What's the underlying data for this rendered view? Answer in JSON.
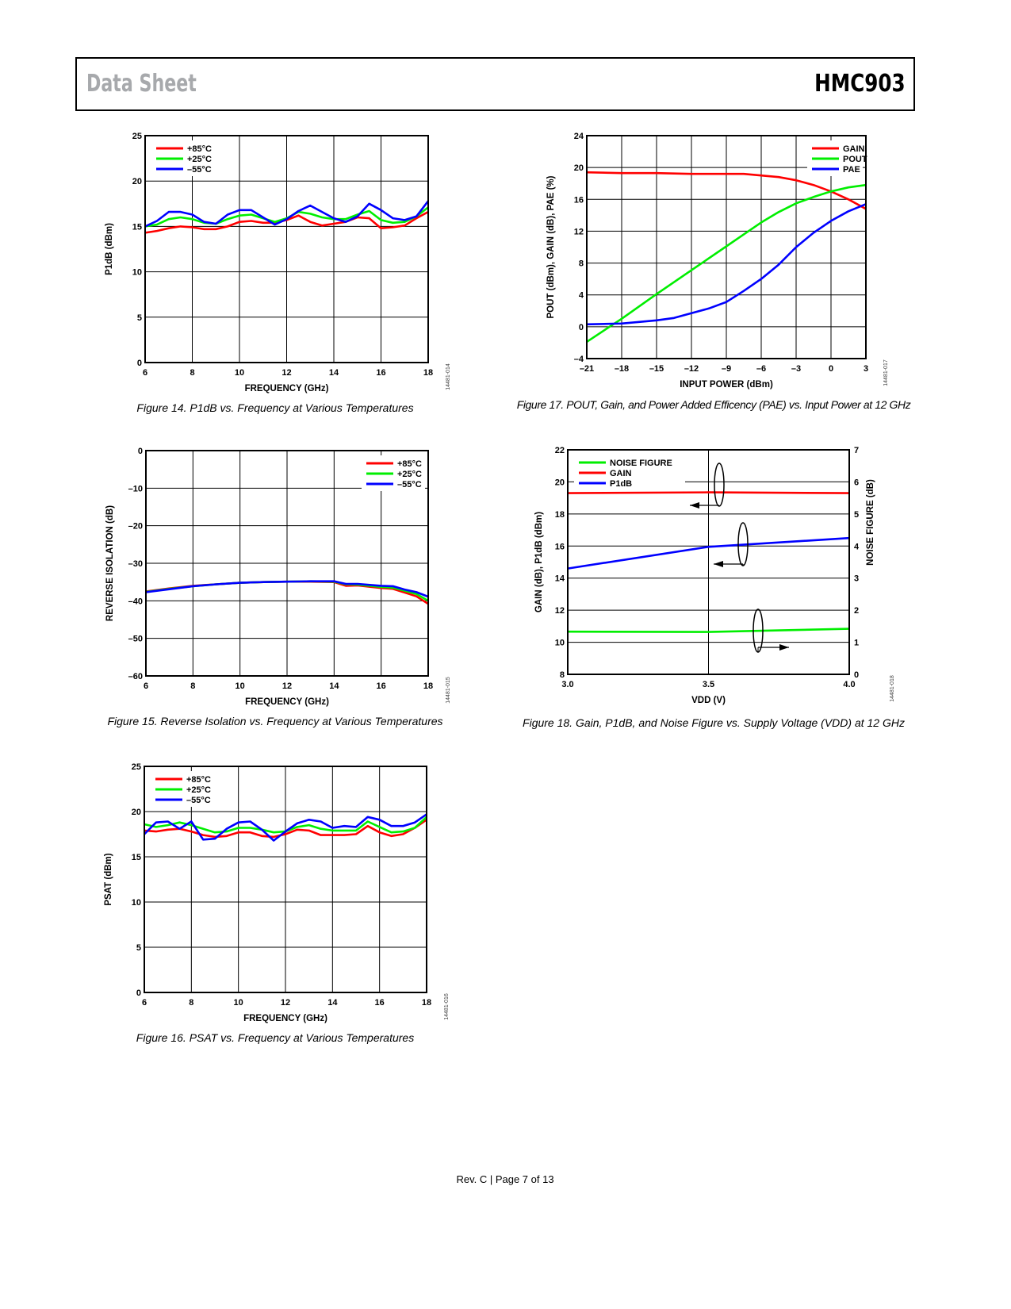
{
  "header": {
    "left": "Data Sheet",
    "right": "HMC903"
  },
  "footer": "Rev. C | Page 7 of 13",
  "captions": [
    "Figure 14. P1dB vs. Frequency at Various Temperatures",
    "Figure 15. Reverse Isolation vs. Frequency at Various Temperatures",
    "Figure 16. PSAT vs. Frequency at Various Temperatures",
    "Figure 17. POUT, Gain, and Power Added Efficency (PAE) vs. Input Power at 12 GHz",
    "Figure 18. Gain, P1dB, and Noise Figure vs. Supply Voltage (VDD) at 12 GHz"
  ],
  "chart_data": [
    {
      "type": "line",
      "figure_code": "14481-014",
      "xlabel": "FREQUENCY (GHz)",
      "ylabel": "P1dB (dBm)",
      "xlim": [
        6,
        18
      ],
      "ylim": [
        0,
        25
      ],
      "xticks": [
        6,
        8,
        10,
        12,
        14,
        16,
        18
      ],
      "xtick_labels": [
        "6",
        "8",
        "10",
        "12",
        "14",
        "16",
        "18"
      ],
      "yticks": [
        0,
        5,
        10,
        15,
        20,
        25
      ],
      "ytick_labels": [
        "0",
        "5",
        "10",
        "15",
        "20",
        "25"
      ],
      "grid": true,
      "legend": "top-left",
      "series": [
        {
          "name": "+85°C",
          "color": "#ff0000",
          "x": [
            6,
            6.5,
            7,
            7.5,
            8,
            8.5,
            9,
            9.5,
            10,
            10.5,
            11,
            11.5,
            12,
            12.5,
            13,
            13.5,
            14,
            14.5,
            15,
            15.5,
            16,
            16.5,
            17,
            17.5,
            18
          ],
          "y": [
            14.3,
            14.5,
            14.8,
            15.0,
            14.9,
            14.7,
            14.7,
            15.0,
            15.5,
            15.6,
            15.4,
            15.4,
            15.7,
            16.2,
            15.5,
            15.1,
            15.3,
            15.5,
            16.0,
            15.9,
            14.8,
            14.9,
            15.1,
            15.9,
            16.6
          ]
        },
        {
          "name": "+25°C",
          "color": "#00ee00",
          "x": [
            6,
            6.5,
            7,
            7.5,
            8,
            8.5,
            9,
            9.5,
            10,
            10.5,
            11,
            11.5,
            12,
            12.5,
            13,
            13.5,
            14,
            14.5,
            15,
            15.5,
            16,
            16.5,
            17,
            17.5,
            18
          ],
          "y": [
            15.0,
            15.2,
            15.8,
            16.0,
            15.8,
            15.4,
            15.3,
            15.8,
            16.2,
            16.3,
            15.9,
            15.5,
            15.9,
            16.6,
            16.4,
            16.0,
            15.8,
            15.8,
            16.3,
            16.7,
            15.7,
            15.4,
            15.5,
            16.1,
            17.1
          ]
        },
        {
          "name": "–55°C",
          "color": "#0000ff",
          "x": [
            6,
            6.5,
            7,
            7.5,
            8,
            8.5,
            9,
            9.5,
            10,
            10.5,
            11,
            11.5,
            12,
            12.5,
            13,
            13.5,
            14,
            14.5,
            15,
            15.5,
            16,
            16.5,
            17,
            17.5,
            18
          ],
          "y": [
            15.0,
            15.6,
            16.6,
            16.6,
            16.3,
            15.5,
            15.3,
            16.3,
            16.8,
            16.8,
            16.0,
            15.2,
            15.8,
            16.7,
            17.3,
            16.6,
            15.9,
            15.5,
            16.1,
            17.5,
            16.8,
            15.9,
            15.7,
            16.1,
            17.8
          ]
        }
      ]
    },
    {
      "type": "line",
      "figure_code": "14481-015",
      "xlabel": "FREQUENCY (GHz)",
      "ylabel": "REVERSE ISOLATION (dB)",
      "xlim": [
        6,
        18
      ],
      "ylim": [
        -60,
        0
      ],
      "xticks": [
        6,
        8,
        10,
        12,
        14,
        16,
        18
      ],
      "xtick_labels": [
        "6",
        "8",
        "10",
        "12",
        "14",
        "16",
        "18"
      ],
      "yticks": [
        -60,
        -50,
        -40,
        -30,
        -20,
        -10,
        0
      ],
      "ytick_labels": [
        "–60",
        "–50",
        "–40",
        "–30",
        "–20",
        "–10",
        "0"
      ],
      "grid": true,
      "legend": "top-right",
      "series": [
        {
          "name": "+85°C",
          "color": "#ff0000",
          "x": [
            6,
            7,
            8,
            9,
            10,
            11,
            12,
            13,
            14,
            14.5,
            15,
            16,
            16.5,
            17,
            17.5,
            18
          ],
          "y": [
            -37.5,
            -36.7,
            -36.0,
            -35.6,
            -35.2,
            -35.0,
            -34.9,
            -34.9,
            -35.0,
            -36.0,
            -35.9,
            -36.6,
            -36.8,
            -37.8,
            -38.8,
            -40.8
          ]
        },
        {
          "name": "+25°C",
          "color": "#00ee00",
          "x": [
            6,
            7,
            8,
            9,
            10,
            11,
            12,
            13,
            14,
            14.5,
            15,
            16,
            16.5,
            17,
            17.5,
            18
          ],
          "y": [
            -37.6,
            -36.8,
            -36.1,
            -35.6,
            -35.2,
            -35.0,
            -34.9,
            -34.8,
            -34.9,
            -35.6,
            -35.7,
            -36.3,
            -36.5,
            -37.3,
            -38.2,
            -40.0
          ]
        },
        {
          "name": "–55°C",
          "color": "#0000ff",
          "x": [
            6,
            7,
            8,
            9,
            10,
            11,
            12,
            13,
            14,
            14.5,
            15,
            16,
            16.5,
            17,
            17.5,
            18
          ],
          "y": [
            -37.7,
            -36.9,
            -36.1,
            -35.6,
            -35.2,
            -35.0,
            -34.9,
            -34.8,
            -34.8,
            -35.5,
            -35.5,
            -36.0,
            -36.1,
            -37.0,
            -37.7,
            -38.9
          ]
        }
      ]
    },
    {
      "type": "line",
      "figure_code": "14481-016",
      "xlabel": "FREQUENCY (GHz)",
      "ylabel": "PSAT (dBm)",
      "xlim": [
        6,
        18
      ],
      "ylim": [
        0,
        25
      ],
      "xticks": [
        6,
        8,
        10,
        12,
        14,
        16,
        18
      ],
      "xtick_labels": [
        "6",
        "8",
        "10",
        "12",
        "14",
        "16",
        "18"
      ],
      "yticks": [
        0,
        5,
        10,
        15,
        20,
        25
      ],
      "ytick_labels": [
        "0",
        "5",
        "10",
        "15",
        "20",
        "25"
      ],
      "grid": true,
      "legend": "top-left",
      "series": [
        {
          "name": "+85°C",
          "color": "#ff0000",
          "x": [
            6,
            6.5,
            7,
            7.5,
            8,
            8.5,
            9,
            9.5,
            10,
            10.5,
            11,
            11.5,
            12,
            12.5,
            13,
            13.5,
            14,
            14.5,
            15,
            15.5,
            16,
            16.5,
            17,
            17.5,
            18
          ],
          "y": [
            17.9,
            17.8,
            18.0,
            18.1,
            17.8,
            17.4,
            17.2,
            17.3,
            17.7,
            17.7,
            17.3,
            17.2,
            17.5,
            18.0,
            17.9,
            17.4,
            17.4,
            17.4,
            17.5,
            18.4,
            17.7,
            17.3,
            17.5,
            18.2,
            19.1
          ]
        },
        {
          "name": "+25°C",
          "color": "#00ee00",
          "x": [
            6,
            6.5,
            7,
            7.5,
            8,
            8.5,
            9,
            9.5,
            10,
            10.5,
            11,
            11.5,
            12,
            12.5,
            13,
            13.5,
            14,
            14.5,
            15,
            15.5,
            16,
            16.5,
            17,
            17.5,
            18
          ],
          "y": [
            18.6,
            18.3,
            18.5,
            18.8,
            18.5,
            18.1,
            17.7,
            17.8,
            18.2,
            18.2,
            18.0,
            17.7,
            17.8,
            18.3,
            18.5,
            18.1,
            17.9,
            17.9,
            17.9,
            18.9,
            18.3,
            17.7,
            17.8,
            18.2,
            19.4
          ]
        },
        {
          "name": "–55°C",
          "color": "#0000ff",
          "x": [
            6,
            6.5,
            7,
            7.5,
            8,
            8.5,
            9,
            9.5,
            10,
            10.5,
            11,
            11.5,
            12,
            12.5,
            13,
            13.5,
            14,
            14.5,
            15,
            15.5,
            16,
            16.5,
            17,
            17.5,
            18
          ],
          "y": [
            17.5,
            18.8,
            18.9,
            18.1,
            18.9,
            16.9,
            17.0,
            18.1,
            18.8,
            18.9,
            18.0,
            16.8,
            17.8,
            18.7,
            19.1,
            18.9,
            18.2,
            18.4,
            18.3,
            19.4,
            19.1,
            18.4,
            18.4,
            18.8,
            19.7
          ]
        }
      ]
    },
    {
      "type": "line",
      "figure_code": "14481-017",
      "xlabel": "INPUT POWER (dBm)",
      "ylabel": "POUT (dBm), GAIN (dB), PAE (%)",
      "xlim": [
        -21,
        3
      ],
      "ylim": [
        -4,
        24
      ],
      "xticks": [
        -21,
        -18,
        -15,
        -12,
        -9,
        -6,
        -3,
        0,
        3
      ],
      "xtick_labels": [
        "–21",
        "–18",
        "–15",
        "–12",
        "–9",
        "–6",
        "–3",
        "0",
        "3"
      ],
      "yticks": [
        -4,
        0,
        4,
        8,
        12,
        16,
        20,
        24
      ],
      "ytick_labels": [
        "–4",
        "0",
        "4",
        "8",
        "12",
        "16",
        "20",
        "24"
      ],
      "grid": true,
      "legend": "top-right",
      "series": [
        {
          "name": "GAIN",
          "color": "#ff0000",
          "x": [
            -21,
            -18,
            -15,
            -12,
            -9,
            -7.5,
            -6,
            -4.5,
            -3,
            -1.5,
            0,
            1.5,
            3
          ],
          "y": [
            19.4,
            19.3,
            19.3,
            19.2,
            19.2,
            19.2,
            19.0,
            18.8,
            18.4,
            17.8,
            17.0,
            16.0,
            14.8
          ]
        },
        {
          "name": "POUT",
          "color": "#00ee00",
          "x": [
            -21,
            -18,
            -15,
            -12,
            -9,
            -7.5,
            -6,
            -4.5,
            -3,
            -1.5,
            0,
            1.5,
            3
          ],
          "y": [
            -1.9,
            1.0,
            4.1,
            7.1,
            10.1,
            11.6,
            13.1,
            14.4,
            15.5,
            16.3,
            17.0,
            17.5,
            17.8
          ]
        },
        {
          "name": "PAE",
          "color": "#0000ff",
          "x": [
            -21,
            -18,
            -15,
            -13.5,
            -12,
            -10.5,
            -9,
            -7.5,
            -6,
            -4.5,
            -3,
            -1.5,
            0,
            1.5,
            3
          ],
          "y": [
            0.3,
            0.4,
            0.8,
            1.1,
            1.7,
            2.3,
            3.1,
            4.5,
            6.0,
            7.8,
            10.0,
            11.8,
            13.3,
            14.5,
            15.4
          ]
        }
      ]
    },
    {
      "type": "line",
      "figure_code": "14481-018",
      "xlabel": "VDD (V)",
      "ylabel": "GAIN (dB), P1dB (dBm)",
      "y2label": "NOISE FIGURE (dB)",
      "xlim": [
        3.0,
        4.0
      ],
      "ylim": [
        8,
        22
      ],
      "y2lim": [
        0,
        7
      ],
      "xticks": [
        3.0,
        3.5,
        4.0
      ],
      "xtick_labels": [
        "3.0",
        "3.5",
        "4.0"
      ],
      "yticks": [
        8,
        10,
        12,
        14,
        16,
        18,
        20,
        22
      ],
      "ytick_labels": [
        "8",
        "10",
        "12",
        "14",
        "16",
        "18",
        "20",
        "22"
      ],
      "y2ticks": [
        0,
        1,
        2,
        3,
        4,
        5,
        6,
        7
      ],
      "y2tick_labels": [
        "0",
        "1",
        "2",
        "3",
        "4",
        "5",
        "6",
        "7"
      ],
      "grid": true,
      "legend": "top-left",
      "series": [
        {
          "name": "NOISE FIGURE",
          "color": "#00ee00",
          "axis": "right",
          "x": [
            3.0,
            3.5,
            4.0
          ],
          "y": [
            1.33,
            1.32,
            1.42
          ]
        },
        {
          "name": "GAIN",
          "color": "#ff0000",
          "axis": "left",
          "x": [
            3.0,
            3.5,
            4.0
          ],
          "y": [
            19.3,
            19.35,
            19.3
          ]
        },
        {
          "name": "P1dB",
          "color": "#0000ff",
          "axis": "left",
          "x": [
            3.0,
            3.5,
            4.0
          ],
          "y": [
            14.6,
            15.95,
            16.5
          ]
        }
      ]
    }
  ]
}
